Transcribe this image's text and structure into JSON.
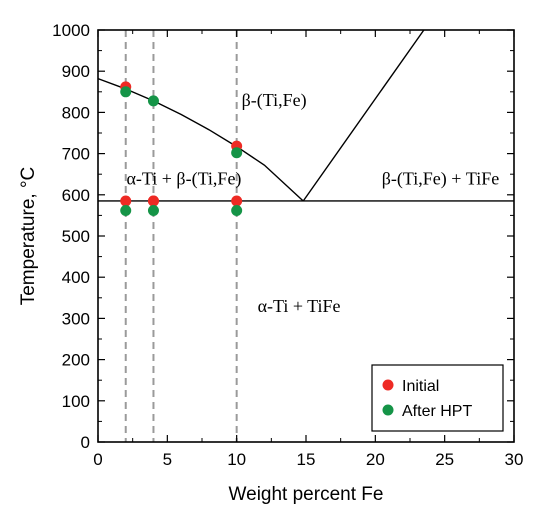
{
  "chart_data": {
    "type": "scatter",
    "xlabel": "Weight percent Fe",
    "ylabel": "Temperature, °C",
    "xlim": [
      0,
      30
    ],
    "ylim": [
      0,
      1000
    ],
    "xticks": [
      "0",
      "5",
      "10",
      "15",
      "20",
      "25",
      "30"
    ],
    "yticks": [
      "0",
      "100",
      "200",
      "300",
      "400",
      "500",
      "600",
      "700",
      "800",
      "900",
      "1000"
    ],
    "grid": false,
    "legend_position": "bottom-right",
    "series": [
      {
        "name": "Initial",
        "color": "#ee2a24",
        "x": [
          2,
          2,
          4,
          4,
          10,
          10
        ],
        "y": [
          862,
          585,
          585,
          585,
          718,
          585
        ]
      },
      {
        "name": "After HPT",
        "color": "#159447",
        "x": [
          2,
          2,
          4,
          4,
          10,
          10
        ],
        "y": [
          850,
          562,
          828,
          562,
          702,
          562
        ]
      }
    ],
    "phase_boundaries": {
      "liquidus_left": {
        "x": [
          0,
          2,
          4,
          6,
          8,
          10,
          12,
          14.8
        ],
        "y": [
          882,
          857,
          828,
          795,
          758,
          717,
          672,
          585
        ]
      },
      "liquidus_right": {
        "x": [
          14.8,
          23.5
        ],
        "y": [
          585,
          1000
        ]
      },
      "eutectoid": {
        "x": [
          0,
          30
        ],
        "y": [
          585,
          585
        ]
      }
    },
    "composition_lines_x": [
      2,
      4,
      10
    ],
    "region_labels": {
      "beta": "β-(Ti,Fe)",
      "alpha_beta": "α-Ti + β-(Ti,Fe)",
      "beta_tife": "β-(Ti,Fe) + TiFe",
      "alpha_tife": "α-Ti + TiFe"
    },
    "region_label_positions": {
      "beta": {
        "x": 12.7,
        "y": 830
      },
      "alpha_beta": {
        "x": 6.2,
        "y": 640
      },
      "beta_tife": {
        "x": 24.7,
        "y": 640
      },
      "alpha_tife": {
        "x": 14.5,
        "y": 330
      }
    }
  }
}
